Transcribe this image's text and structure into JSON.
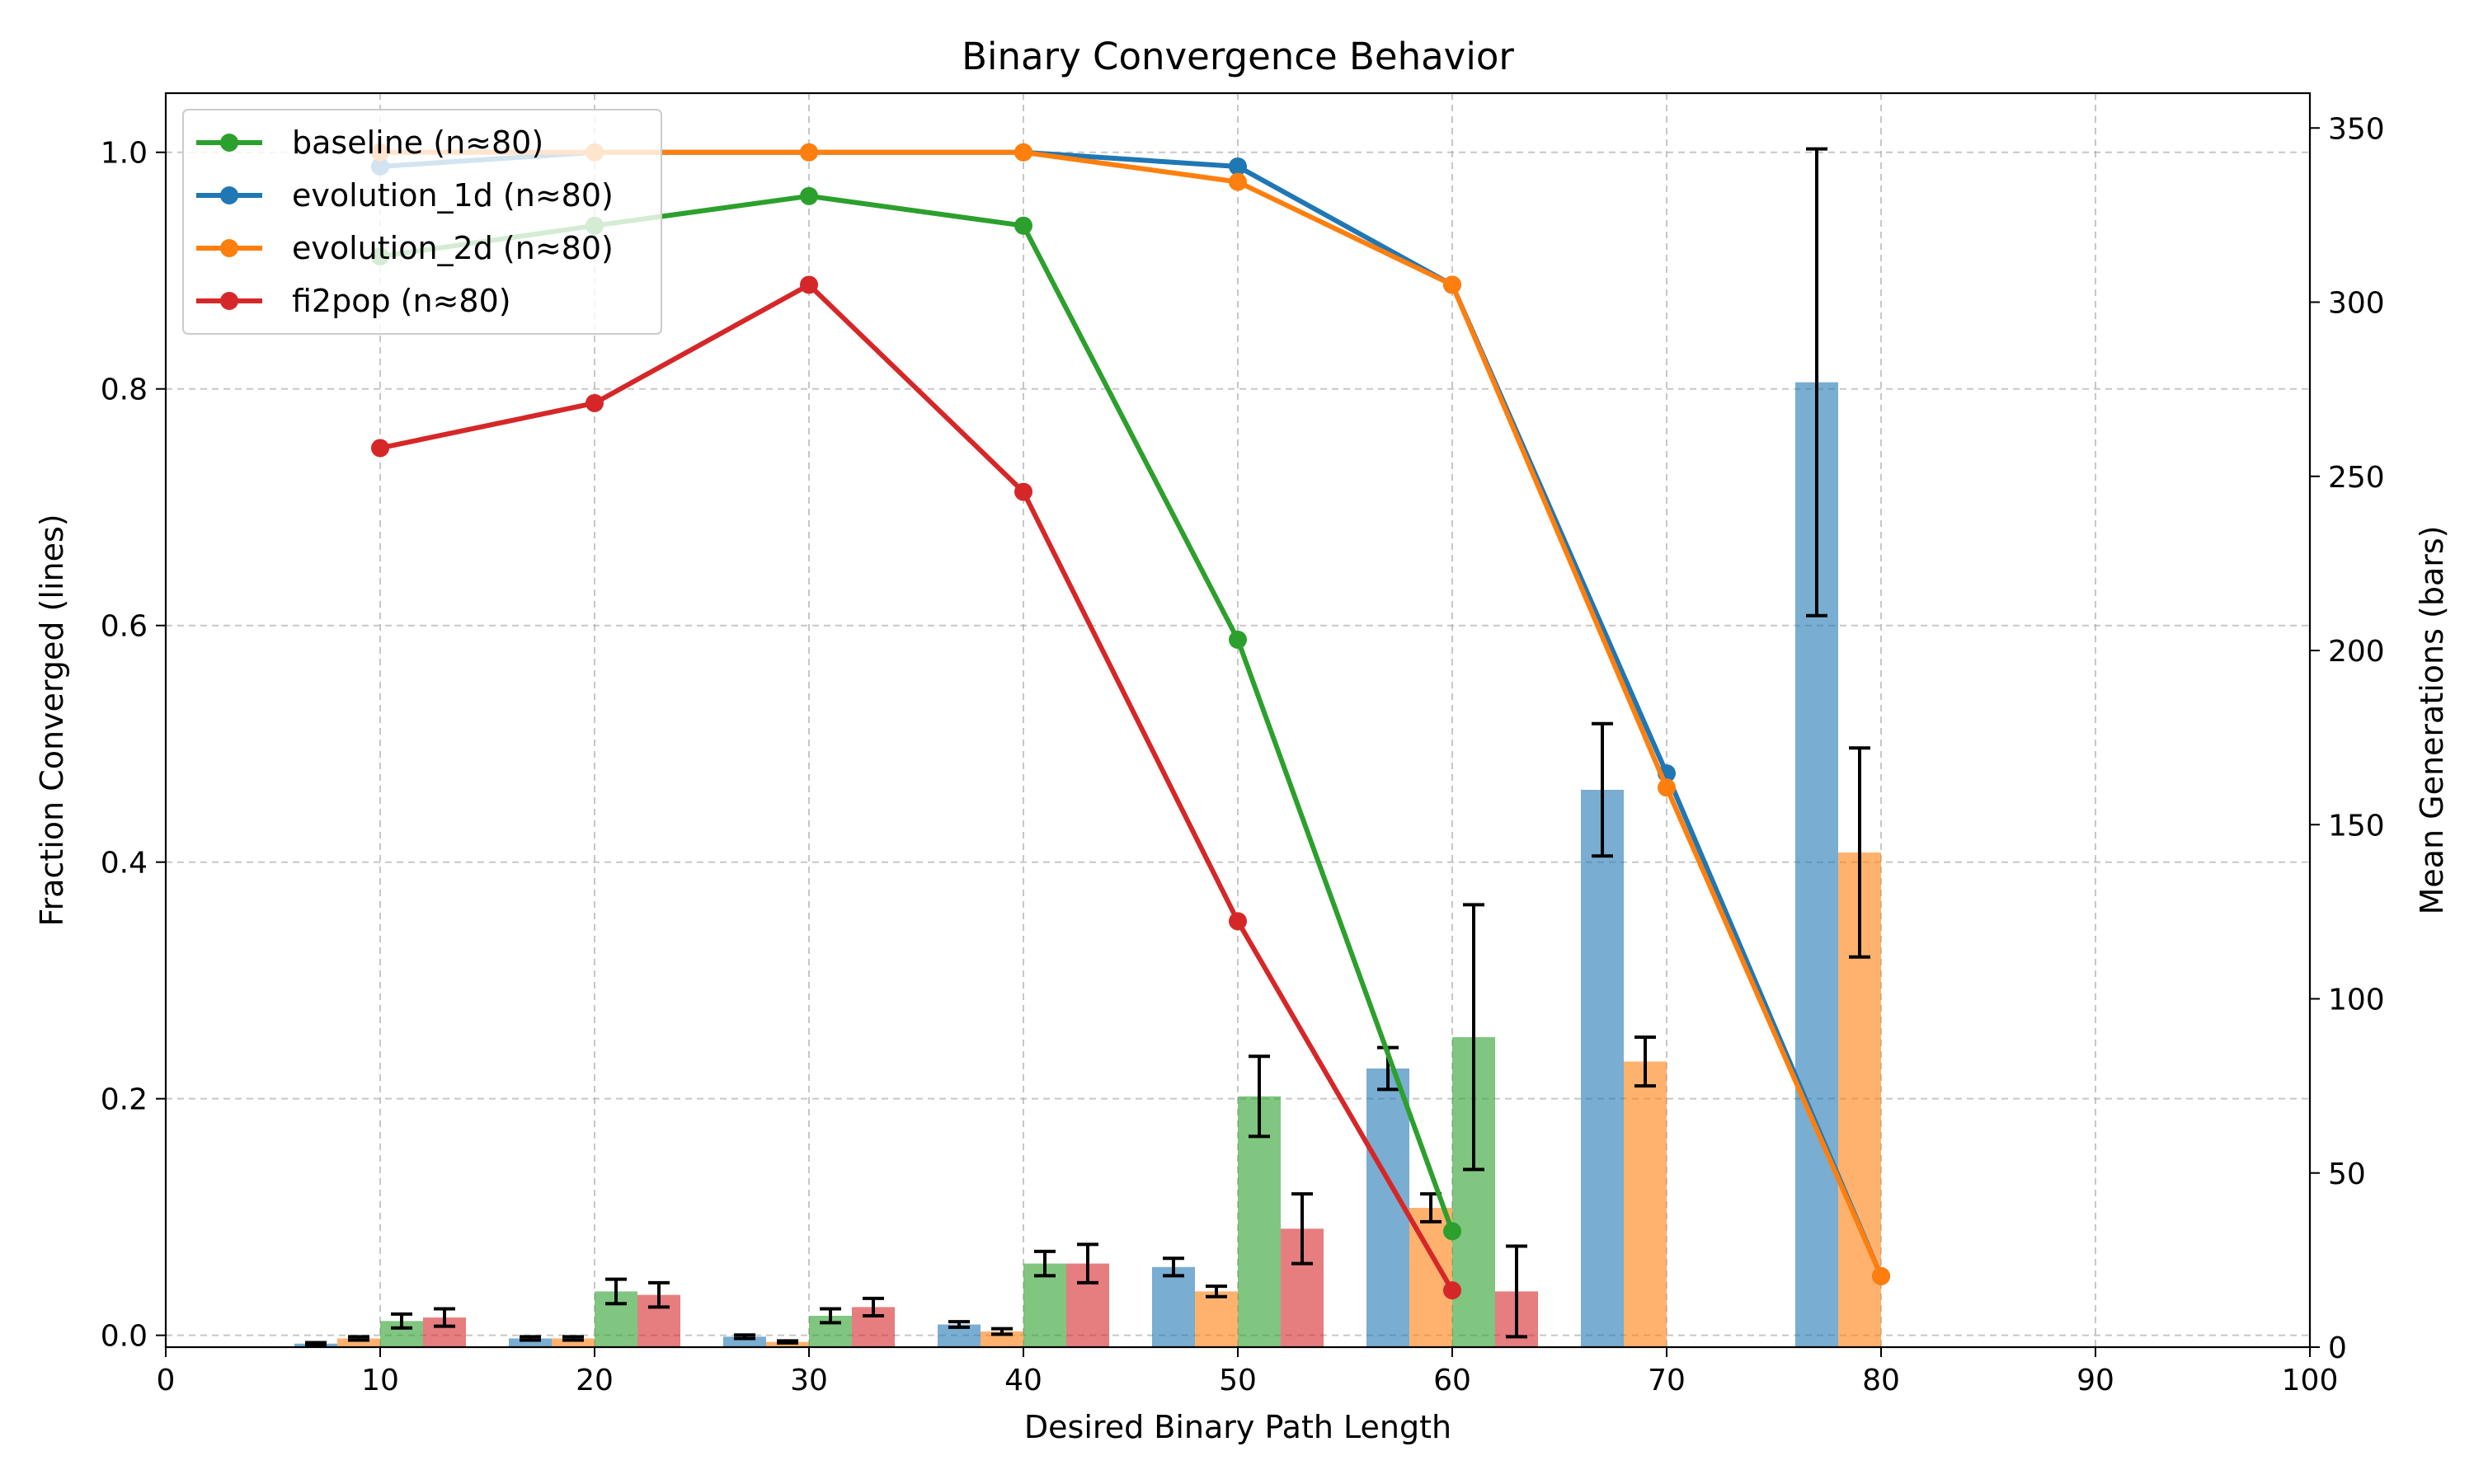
{
  "chart_data": {
    "type": "bar+line",
    "title": "Binary Convergence Behavior",
    "xlabel": "Desired Binary Path Length",
    "ylabel_left": "Fraction Converged (lines)",
    "ylabel_right": "Mean Generations (bars)",
    "xlim": [
      0,
      100
    ],
    "ylim_left": [
      -0.01,
      1.05
    ],
    "ylim_right": [
      0,
      360
    ],
    "x_ticks": [
      "0",
      "10",
      "20",
      "30",
      "40",
      "50",
      "60",
      "70",
      "80",
      "90",
      "100"
    ],
    "y_ticks_left": [
      "0.0",
      "0.2",
      "0.4",
      "0.6",
      "0.8",
      "1.0"
    ],
    "y_ticks_right": [
      "0",
      "50",
      "100",
      "150",
      "200",
      "250",
      "300",
      "350"
    ],
    "grid": true,
    "legend_position": "top-left",
    "bar_width": 2.0,
    "series": [
      {
        "name": "baseline (n≈80)",
        "color": "#2ca02c",
        "line_x": [
          10,
          20,
          30,
          40,
          50,
          60
        ],
        "line_y": [
          0.912,
          0.938,
          0.963,
          0.938,
          0.588,
          0.088
        ],
        "bar_offset": 1.0,
        "bar_x": [
          10,
          20,
          30,
          40,
          50,
          60
        ],
        "bar_mean": [
          7.5,
          16.0,
          9.0,
          24.0,
          72.0,
          89.0
        ],
        "bar_err": [
          2.0,
          3.5,
          2.0,
          3.5,
          11.5,
          38.0
        ]
      },
      {
        "name": "evolution_1d (n≈80)",
        "color": "#1f77b4",
        "line_x": [
          10,
          20,
          30,
          40,
          50,
          60,
          70,
          80
        ],
        "line_y": [
          0.988,
          1.0,
          1.0,
          1.0,
          0.988,
          0.888,
          0.475,
          0.05
        ],
        "bar_offset": -3.0,
        "bar_x": [
          10,
          20,
          30,
          40,
          50,
          60,
          70,
          80
        ],
        "bar_mean": [
          1.0,
          2.5,
          3.0,
          6.5,
          23.0,
          80.0,
          160.0,
          277.0
        ],
        "bar_err": [
          0.3,
          0.5,
          0.5,
          0.8,
          2.5,
          6.0,
          19.0,
          67.0
        ]
      },
      {
        "name": "evolution_2d (n≈80)",
        "color": "#ff7f0e",
        "line_x": [
          10,
          20,
          30,
          40,
          50,
          60,
          70,
          80
        ],
        "line_y": [
          1.0,
          1.0,
          1.0,
          1.0,
          0.975,
          0.888,
          0.463,
          0.05
        ],
        "bar_offset": -1.0,
        "bar_x": [
          10,
          20,
          30,
          40,
          50,
          60,
          70,
          80
        ],
        "bar_mean": [
          2.5,
          2.5,
          1.5,
          4.5,
          16.0,
          40.0,
          82.0,
          142.0
        ],
        "bar_err": [
          0.5,
          0.5,
          0.3,
          0.8,
          1.5,
          4.0,
          7.0,
          30.0
        ]
      },
      {
        "name": "fi2pop (n≈80)",
        "color": "#d62728",
        "line_x": [
          10,
          20,
          30,
          40,
          50,
          60
        ],
        "line_y": [
          0.75,
          0.788,
          0.888,
          0.713,
          0.35,
          0.038
        ],
        "bar_offset": 3.0,
        "bar_x": [
          10,
          20,
          30,
          40,
          50,
          60
        ],
        "bar_mean": [
          8.5,
          15.0,
          11.5,
          24.0,
          34.0,
          16.0
        ],
        "bar_err": [
          2.5,
          3.5,
          2.5,
          5.5,
          10.0,
          13.0
        ]
      }
    ]
  }
}
